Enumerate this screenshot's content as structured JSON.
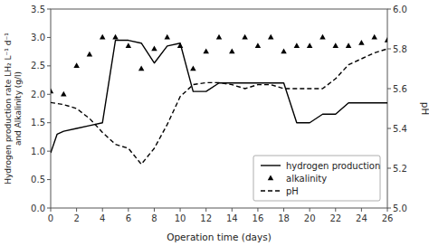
{
  "chart_data": {
    "type": "line",
    "xlabel": "Operation time (days)",
    "ylabel": "Hydrogen production rate LH₂ L⁻¹ d⁻¹\nand Alkalinity (g/l)",
    "y2label": "pH",
    "xlim": [
      0,
      26
    ],
    "xticks": [
      0,
      2,
      4,
      6,
      8,
      10,
      12,
      14,
      16,
      18,
      20,
      22,
      24,
      26
    ],
    "ylim": [
      0,
      3.5
    ],
    "yticks": [
      {
        "value": 0,
        "label": "0.0"
      },
      0.5,
      {
        "value": 1.0,
        "label": "1.0"
      },
      1.5,
      {
        "value": 2.0,
        "label": "2.0"
      },
      2.5,
      {
        "value": 3.0,
        "label": "3.0"
      },
      3.5
    ],
    "y2lim": [
      5.0,
      6.0
    ],
    "y2ticks": [
      {
        "value": 5.0,
        "label": "5.0"
      },
      5.2,
      5.4,
      5.6,
      5.8,
      {
        "value": 6.0,
        "label": "6.0"
      }
    ],
    "grid": false,
    "legend": "lower right",
    "series": [
      {
        "name": "hydrogen production",
        "type": "line",
        "color": "#000000",
        "line_style": "solid",
        "x": [
          0,
          0.5,
          1,
          2,
          3,
          4,
          5,
          6,
          7,
          8,
          9,
          10,
          11,
          12,
          13,
          14,
          15,
          16,
          17,
          18,
          19,
          20,
          21,
          22,
          23,
          24,
          25,
          26
        ],
        "values": [
          0.97,
          1.3,
          1.35,
          1.4,
          1.45,
          1.5,
          2.95,
          2.95,
          2.9,
          2.55,
          2.85,
          2.9,
          2.05,
          2.05,
          2.2,
          2.2,
          2.2,
          2.2,
          2.2,
          2.2,
          1.5,
          1.5,
          1.65,
          1.65,
          1.85,
          1.85,
          1.85,
          1.85
        ]
      },
      {
        "name": "alkalinity",
        "type": "scatter",
        "color": "#000000",
        "marker": "triangle",
        "x": [
          0,
          1,
          2,
          3,
          4,
          5,
          6,
          7,
          8,
          9,
          10,
          11,
          12,
          13,
          14,
          15,
          16,
          17,
          18,
          19,
          20,
          21,
          22,
          23,
          24,
          25,
          26
        ],
        "values": [
          2.05,
          2.0,
          2.5,
          2.7,
          3.0,
          3.0,
          2.85,
          2.45,
          2.8,
          3.0,
          2.85,
          2.45,
          2.75,
          3.0,
          2.75,
          3.0,
          2.85,
          3.0,
          2.75,
          2.85,
          2.85,
          3.0,
          2.85,
          2.85,
          2.9,
          3.0,
          2.95
        ]
      },
      {
        "name": "pH",
        "type": "line",
        "color": "#000000",
        "line_style": "dashed",
        "axis": "y2",
        "x": [
          0,
          1,
          2,
          3,
          4,
          5,
          6,
          7,
          8,
          9,
          10,
          11,
          12,
          13,
          14,
          15,
          16,
          17,
          18,
          19,
          20,
          21,
          22,
          23,
          24,
          25,
          26
        ],
        "values": [
          5.53,
          5.52,
          5.5,
          5.45,
          5.38,
          5.32,
          5.3,
          5.22,
          5.3,
          5.42,
          5.56,
          5.62,
          5.63,
          5.63,
          5.62,
          5.6,
          5.62,
          5.62,
          5.6,
          5.6,
          5.6,
          5.6,
          5.65,
          5.72,
          5.75,
          5.78,
          5.8
        ]
      }
    ]
  }
}
